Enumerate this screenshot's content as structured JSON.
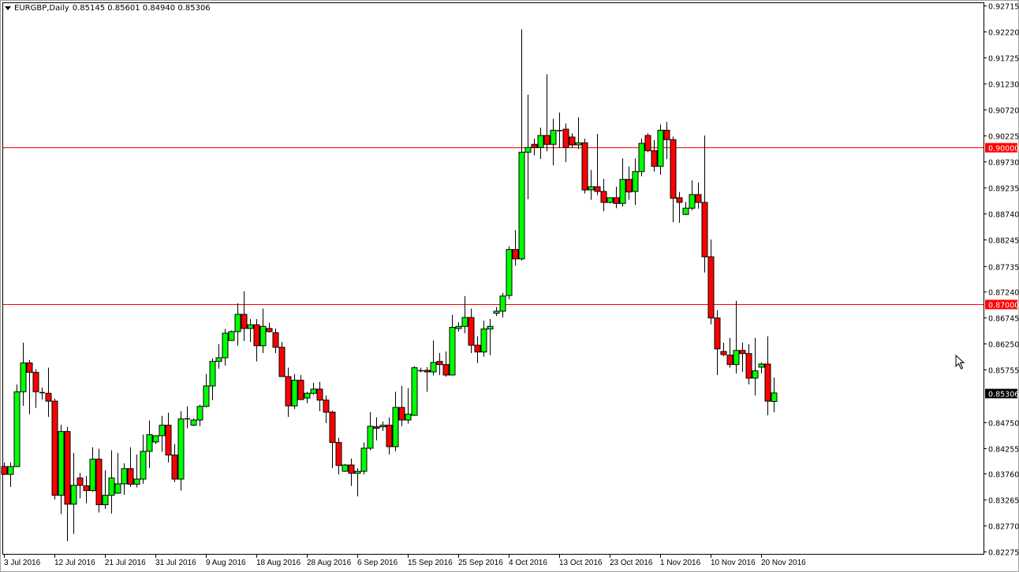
{
  "header": {
    "symbol": "EURGBP,Daily",
    "ohlc": "0.85145 0.85601 0.84940 0.85306"
  },
  "chart_data": {
    "type": "candlestick",
    "title": "EURGBP,Daily",
    "ylim": [
      0.82275,
      0.92715
    ],
    "grid": false,
    "colors": {
      "up": "#00ff00",
      "down": "#ff0000",
      "wick": "#000000",
      "level_line": "#ff0000",
      "current_price_bg": "#000000"
    },
    "y_ticks": [
      "0.92715",
      "0.92220",
      "0.91725",
      "0.91230",
      "0.90720",
      "0.90225",
      "0.89730",
      "0.89235",
      "0.88740",
      "0.88245",
      "0.87735",
      "0.87240",
      "0.86745",
      "0.86250",
      "0.85755",
      "0.84750",
      "0.84255",
      "0.83760",
      "0.83265",
      "0.82770",
      "0.82275"
    ],
    "x_tick_labels": [
      {
        "index": 0,
        "label": "3 Jul 2016"
      },
      {
        "index": 8,
        "label": "12 Jul 2016"
      },
      {
        "index": 16,
        "label": "21 Jul 2016"
      },
      {
        "index": 24,
        "label": "31 Jul 2016"
      },
      {
        "index": 32,
        "label": "9 Aug 2016"
      },
      {
        "index": 40,
        "label": "18 Aug 2016"
      },
      {
        "index": 48,
        "label": "28 Aug 2016"
      },
      {
        "index": 56,
        "label": "6 Sep 2016"
      },
      {
        "index": 64,
        "label": "15 Sep 2016"
      },
      {
        "index": 72,
        "label": "25 Sep 2016"
      },
      {
        "index": 80,
        "label": "4 Oct 2016"
      },
      {
        "index": 88,
        "label": "13 Oct 2016"
      },
      {
        "index": 96,
        "label": "23 Oct 2016"
      },
      {
        "index": 104,
        "label": "1 Nov 2016"
      },
      {
        "index": 112,
        "label": "10 Nov 2016"
      },
      {
        "index": 120,
        "label": "20 Nov 2016"
      }
    ],
    "levels": [
      {
        "price": 0.9,
        "label": "0.90000"
      },
      {
        "price": 0.87,
        "label": "0.87000"
      }
    ],
    "current_price": {
      "price": 0.85306,
      "label": "0.85306"
    },
    "ohlc": [
      [
        0.839,
        0.8398,
        0.8374,
        0.8375
      ],
      [
        0.8375,
        0.8398,
        0.8351,
        0.839
      ],
      [
        0.839,
        0.8547,
        0.8389,
        0.8533
      ],
      [
        0.8533,
        0.8627,
        0.8506,
        0.8588
      ],
      [
        0.8588,
        0.8594,
        0.849,
        0.857
      ],
      [
        0.857,
        0.8576,
        0.8502,
        0.8533
      ],
      [
        0.8532,
        0.8541,
        0.8518,
        0.853
      ],
      [
        0.853,
        0.8579,
        0.8485,
        0.8515
      ],
      [
        0.8515,
        0.852,
        0.8327,
        0.8335
      ],
      [
        0.8335,
        0.847,
        0.8299,
        0.8457
      ],
      [
        0.8457,
        0.8466,
        0.8247,
        0.8318
      ],
      [
        0.8318,
        0.8416,
        0.8261,
        0.8354
      ],
      [
        0.8368,
        0.8378,
        0.8329,
        0.8354
      ],
      [
        0.8353,
        0.8372,
        0.832,
        0.8344
      ],
      [
        0.8344,
        0.8427,
        0.8342,
        0.8404
      ],
      [
        0.8404,
        0.8424,
        0.8302,
        0.8317
      ],
      [
        0.8317,
        0.8383,
        0.8309,
        0.8335
      ],
      [
        0.8335,
        0.8421,
        0.83,
        0.8368
      ],
      [
        0.8339,
        0.8416,
        0.8338,
        0.8357
      ],
      [
        0.8357,
        0.8396,
        0.8336,
        0.8386
      ],
      [
        0.8386,
        0.8427,
        0.8351,
        0.8356
      ],
      [
        0.8356,
        0.8413,
        0.835,
        0.8366
      ],
      [
        0.8366,
        0.8451,
        0.8357,
        0.8419
      ],
      [
        0.8419,
        0.8478,
        0.8387,
        0.8451
      ],
      [
        0.8437,
        0.8449,
        0.8433,
        0.8449
      ],
      [
        0.8449,
        0.8487,
        0.8418,
        0.8469
      ],
      [
        0.8469,
        0.8493,
        0.8398,
        0.8412
      ],
      [
        0.8412,
        0.8433,
        0.836,
        0.8366
      ],
      [
        0.8366,
        0.8496,
        0.8344,
        0.8481
      ],
      [
        0.8482,
        0.8505,
        0.8463,
        0.8482
      ],
      [
        0.8469,
        0.8482,
        0.8467,
        0.8479
      ],
      [
        0.8479,
        0.8508,
        0.8467,
        0.8505
      ],
      [
        0.8505,
        0.8567,
        0.8503,
        0.8544
      ],
      [
        0.8544,
        0.8597,
        0.8517,
        0.8591
      ],
      [
        0.8591,
        0.8624,
        0.8577,
        0.8598
      ],
      [
        0.8598,
        0.8653,
        0.8583,
        0.8645
      ],
      [
        0.8631,
        0.865,
        0.8631,
        0.8648
      ],
      [
        0.8648,
        0.8702,
        0.8621,
        0.8681
      ],
      [
        0.8681,
        0.8725,
        0.863,
        0.8654
      ],
      [
        0.8654,
        0.8672,
        0.8628,
        0.8661
      ],
      [
        0.8661,
        0.8672,
        0.8591,
        0.8621
      ],
      [
        0.8621,
        0.8692,
        0.8607,
        0.8658
      ],
      [
        0.8654,
        0.8665,
        0.8646,
        0.8648
      ],
      [
        0.8646,
        0.8654,
        0.8607,
        0.8618
      ],
      [
        0.8618,
        0.8628,
        0.8562,
        0.8562
      ],
      [
        0.8562,
        0.8579,
        0.8485,
        0.8506
      ],
      [
        0.8506,
        0.8567,
        0.85,
        0.8555
      ],
      [
        0.8555,
        0.8565,
        0.8518,
        0.8518
      ],
      [
        0.8521,
        0.8533,
        0.8511,
        0.853
      ],
      [
        0.853,
        0.855,
        0.8527,
        0.8538
      ],
      [
        0.8538,
        0.8552,
        0.8496,
        0.8517
      ],
      [
        0.8517,
        0.8526,
        0.8473,
        0.8494
      ],
      [
        0.8494,
        0.8497,
        0.8387,
        0.8436
      ],
      [
        0.8436,
        0.8445,
        0.8375,
        0.8392
      ],
      [
        0.8381,
        0.8395,
        0.838,
        0.8393
      ],
      [
        0.8393,
        0.8405,
        0.8353,
        0.8377
      ],
      [
        0.8377,
        0.8387,
        0.8333,
        0.8381
      ],
      [
        0.8381,
        0.8436,
        0.8375,
        0.8425
      ],
      [
        0.8425,
        0.8494,
        0.8421,
        0.8467
      ],
      [
        0.8466,
        0.8484,
        0.844,
        0.8463
      ],
      [
        0.8466,
        0.8476,
        0.8458,
        0.8469
      ],
      [
        0.8469,
        0.8484,
        0.8413,
        0.8428
      ],
      [
        0.8428,
        0.8533,
        0.8419,
        0.8503
      ],
      [
        0.8503,
        0.8544,
        0.8467,
        0.8479
      ],
      [
        0.8479,
        0.854,
        0.8472,
        0.849
      ],
      [
        0.8488,
        0.8582,
        0.8487,
        0.8579
      ],
      [
        0.8574,
        0.8579,
        0.857,
        0.8574
      ],
      [
        0.8574,
        0.858,
        0.8533,
        0.8571
      ],
      [
        0.8571,
        0.8631,
        0.8564,
        0.8589
      ],
      [
        0.8591,
        0.8607,
        0.8565,
        0.8585
      ],
      [
        0.8585,
        0.861,
        0.8562,
        0.8565
      ],
      [
        0.8565,
        0.868,
        0.8564,
        0.8656
      ],
      [
        0.8654,
        0.8666,
        0.8648,
        0.8658
      ],
      [
        0.8658,
        0.8716,
        0.8645,
        0.8675
      ],
      [
        0.8675,
        0.8692,
        0.8607,
        0.8622
      ],
      [
        0.8622,
        0.8639,
        0.8588,
        0.8609
      ],
      [
        0.8609,
        0.8669,
        0.86,
        0.8653
      ],
      [
        0.8653,
        0.8672,
        0.8603,
        0.8658
      ],
      [
        0.8683,
        0.8695,
        0.8678,
        0.8687
      ],
      [
        0.8687,
        0.8722,
        0.8675,
        0.8716
      ],
      [
        0.8717,
        0.8811,
        0.871,
        0.8805
      ],
      [
        0.8805,
        0.8842,
        0.8774,
        0.8787
      ],
      [
        0.8787,
        0.9226,
        0.8784,
        0.8991
      ],
      [
        0.8991,
        0.9101,
        0.8901,
        0.9
      ],
      [
        0.9006,
        0.9017,
        0.8985,
        0.9
      ],
      [
        0.9,
        0.9038,
        0.8978,
        0.9023
      ],
      [
        0.9023,
        0.914,
        0.8993,
        0.9006
      ],
      [
        0.9006,
        0.9055,
        0.8966,
        0.9033
      ],
      [
        0.9033,
        0.9067,
        0.8999,
        0.9032
      ],
      [
        0.9035,
        0.9046,
        0.8972,
        0.9
      ],
      [
        0.902,
        0.9027,
        0.9,
        0.9005
      ],
      [
        0.9005,
        0.9058,
        0.8997,
        0.9009
      ],
      [
        0.9009,
        0.9017,
        0.8912,
        0.8919
      ],
      [
        0.8919,
        0.8957,
        0.89,
        0.8925
      ],
      [
        0.8925,
        0.9026,
        0.8909,
        0.8916
      ],
      [
        0.8916,
        0.894,
        0.8878,
        0.8895
      ],
      [
        0.8895,
        0.8904,
        0.8893,
        0.8904
      ],
      [
        0.8904,
        0.8925,
        0.8884,
        0.8893
      ],
      [
        0.8893,
        0.8979,
        0.8887,
        0.8939
      ],
      [
        0.8939,
        0.8964,
        0.89,
        0.8915
      ],
      [
        0.8916,
        0.8979,
        0.889,
        0.8954
      ],
      [
        0.8954,
        0.9017,
        0.8945,
        0.9008
      ],
      [
        0.9023,
        0.9027,
        0.8991,
        0.8994
      ],
      [
        0.8994,
        0.9014,
        0.8954,
        0.8964
      ],
      [
        0.8964,
        0.9044,
        0.8948,
        0.9033
      ],
      [
        0.9033,
        0.9049,
        0.8978,
        0.9015
      ],
      [
        0.9015,
        0.9021,
        0.8857,
        0.8903
      ],
      [
        0.8904,
        0.8915,
        0.8856,
        0.8895
      ],
      [
        0.8872,
        0.8896,
        0.8871,
        0.8884
      ],
      [
        0.8884,
        0.8937,
        0.888,
        0.891
      ],
      [
        0.891,
        0.8933,
        0.8883,
        0.8895
      ],
      [
        0.8895,
        0.9023,
        0.8761,
        0.8791
      ],
      [
        0.8791,
        0.8824,
        0.8662,
        0.8674
      ],
      [
        0.8674,
        0.8689,
        0.8565,
        0.8615
      ],
      [
        0.861,
        0.8627,
        0.8601,
        0.8604
      ],
      [
        0.8603,
        0.8636,
        0.8579,
        0.8585
      ],
      [
        0.8585,
        0.8707,
        0.8568,
        0.8612
      ],
      [
        0.8612,
        0.8627,
        0.8571,
        0.8606
      ],
      [
        0.8606,
        0.8624,
        0.8547,
        0.8559
      ],
      [
        0.8559,
        0.8636,
        0.8526,
        0.8573
      ],
      [
        0.858,
        0.8589,
        0.8568,
        0.8586
      ],
      [
        0.8586,
        0.8639,
        0.8488,
        0.8515
      ],
      [
        0.85145,
        0.85601,
        0.8494,
        0.85306
      ]
    ]
  }
}
